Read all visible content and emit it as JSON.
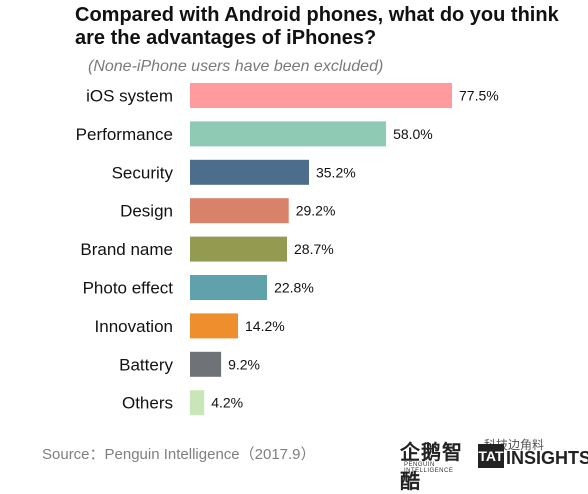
{
  "chart_data": {
    "type": "bar",
    "orientation": "horizontal",
    "title": "Compared with Android phones, what do you think are the advantages of iPhones?",
    "subtitle": "(None-iPhone users have been excluded)",
    "categories": [
      "iOS system",
      "Performance",
      "Security",
      "Design",
      "Brand name",
      "Photo effect",
      "Innovation",
      "Battery",
      "Others"
    ],
    "values": [
      77.5,
      58.0,
      35.2,
      29.2,
      28.7,
      22.8,
      14.2,
      9.2,
      4.2
    ],
    "value_labels": [
      "77.5%",
      "58.0%",
      "35.2%",
      "29.2%",
      "28.7%",
      "22.8%",
      "14.2%",
      "9.2%",
      "4.2%"
    ],
    "colors": [
      "#FF9A9E",
      "#8FCBB4",
      "#4C6E8C",
      "#D9826A",
      "#959A51",
      "#5FA2AC",
      "#EE8E2C",
      "#6F7377",
      "#C9E6B8"
    ],
    "xlim": [
      0,
      80
    ],
    "grid": false,
    "legend": "none"
  },
  "source": "Source：Penguin Intelligence（2017.9）",
  "logos": {
    "penguin_cn": "企鹅智酷",
    "penguin_en": "PENGUIN INTELLIGENCE",
    "insights_mark": "TAT",
    "insights_text": "INSIGHTS",
    "watermark": "科技边角料"
  }
}
